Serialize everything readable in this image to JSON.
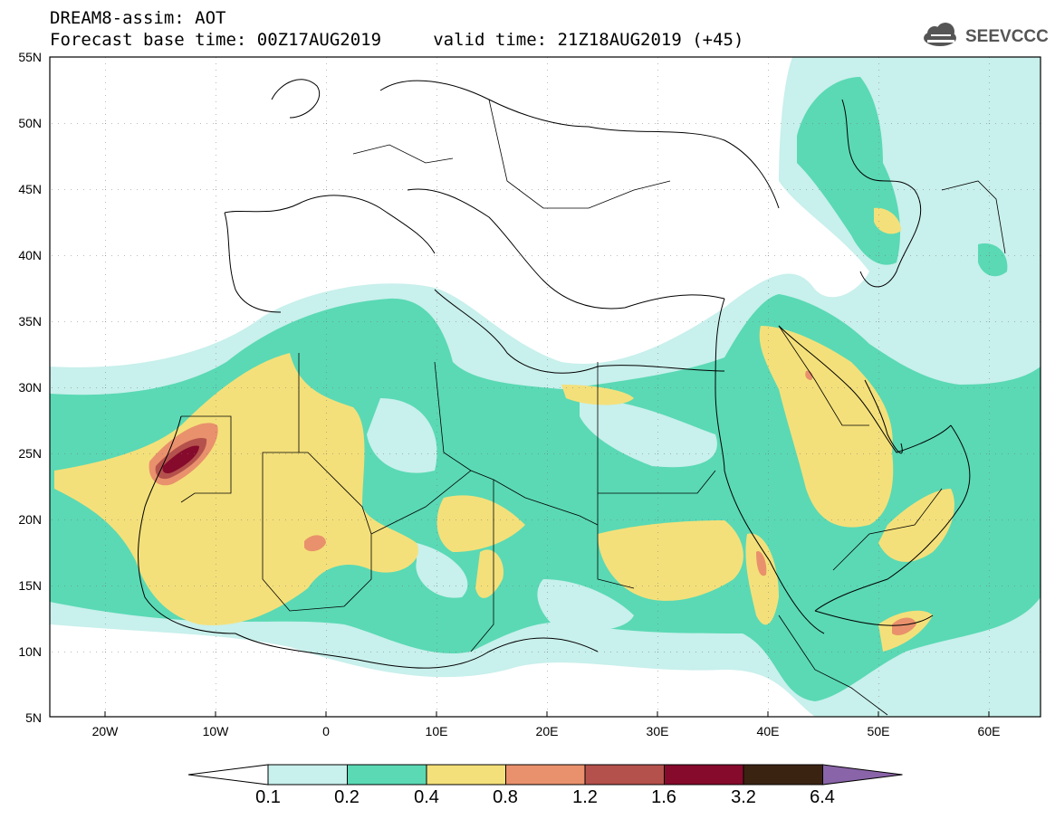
{
  "header": {
    "line1": "DREAM8-assim: AOT",
    "line2": "Forecast base time: 00Z17AUG2019     valid time: 21Z18AUG2019 (+45)"
  },
  "logo": {
    "text": "SEEVCCC",
    "icon": "cloud-icon"
  },
  "axes": {
    "lat_labels": [
      "55N",
      "50N",
      "45N",
      "40N",
      "35N",
      "30N",
      "25N",
      "20N",
      "15N",
      "10N",
      "5N"
    ],
    "lon_labels": [
      "20W",
      "10W",
      "0",
      "10E",
      "20E",
      "30E",
      "40E",
      "50E",
      "60E"
    ]
  },
  "colorbar": {
    "labels": [
      "0.1",
      "0.2",
      "0.4",
      "0.8",
      "1.2",
      "1.6",
      "3.2",
      "6.4"
    ],
    "colors": [
      "#c8f0ec",
      "#5ad9b4",
      "#f4e07a",
      "#e9916c",
      "#b5514c",
      "#860a2c",
      "#3b2312",
      "#8a64a8"
    ],
    "under_color": "#ffffff"
  },
  "colors": {
    "very_light": "#c8f0ec",
    "light": "#5ad9b4",
    "yellow": "#f4e07a",
    "orange": "#e9916c",
    "red": "#b5514c",
    "dark": "#860a2c"
  }
}
